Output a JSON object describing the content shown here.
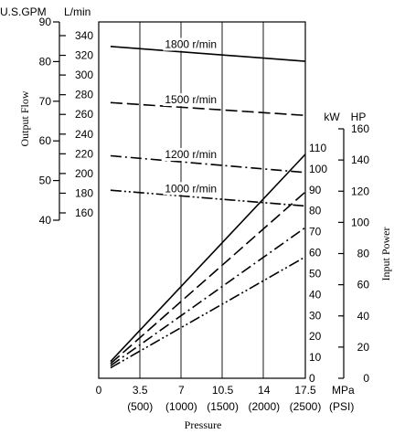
{
  "chart_data": {
    "type": "line",
    "xlabel": "Pressure",
    "x_ticks": [
      "0",
      "3.5",
      "7",
      "10.5",
      "14",
      "17.5"
    ],
    "x_ticks_psi": [
      "(500)",
      "(1000)",
      "(1500)",
      "(2000)",
      "(2500)"
    ],
    "x_unit_mpa": "MPa",
    "x_unit_psi": "(PSI)",
    "xlim": [
      0,
      17.5
    ],
    "left_ylabel": "Output Flow",
    "gpm_unit": "U.S.GPM",
    "lmin_unit": "L/min",
    "gpm_ticks": [
      "90",
      "80",
      "70",
      "60",
      "50",
      "40"
    ],
    "lmin_ticks": [
      "340",
      "320",
      "300",
      "280",
      "260",
      "240",
      "220",
      "200",
      "180",
      "160"
    ],
    "flow_ylim_lmin": [
      160,
      340
    ],
    "right_ylabel": "Input Power",
    "kw_unit": "kW",
    "hp_unit": "HP",
    "kw_ticks": [
      "110",
      "100",
      "90",
      "80",
      "70",
      "60",
      "50",
      "40",
      "30",
      "20",
      "10",
      "0"
    ],
    "hp_ticks": [
      "160",
      "140",
      "120",
      "100",
      "80",
      "60",
      "40",
      "20",
      "0"
    ],
    "power_ylim_kw": [
      0,
      115
    ],
    "flow_series": [
      {
        "name": "1800 r/min",
        "style": "solid",
        "x": [
          1,
          17.5
        ],
        "y": [
          329,
          314
        ]
      },
      {
        "name": "1500 r/min",
        "style": "dash",
        "x": [
          1,
          17.5
        ],
        "y": [
          272,
          259
        ]
      },
      {
        "name": "1200 r/min",
        "style": "dashdot",
        "x": [
          1,
          17.5
        ],
        "y": [
          218,
          201
        ]
      },
      {
        "name": "1000 r/min",
        "style": "dashdotdot",
        "x": [
          1,
          17.5
        ],
        "y": [
          183,
          167
        ]
      }
    ],
    "power_series": [
      {
        "speed": "1800 r/min",
        "style": "solid",
        "x": [
          1,
          17.5
        ],
        "y": [
          8,
          107
        ]
      },
      {
        "speed": "1500 r/min",
        "style": "dash",
        "x": [
          1,
          17.5
        ],
        "y": [
          7,
          89
        ]
      },
      {
        "speed": "1200 r/min",
        "style": "dashdot",
        "x": [
          1,
          17.5
        ],
        "y": [
          6,
          72
        ]
      },
      {
        "speed": "1000 r/min",
        "style": "dashdotdot",
        "x": [
          1,
          17.5
        ],
        "y": [
          5,
          58
        ]
      }
    ]
  }
}
